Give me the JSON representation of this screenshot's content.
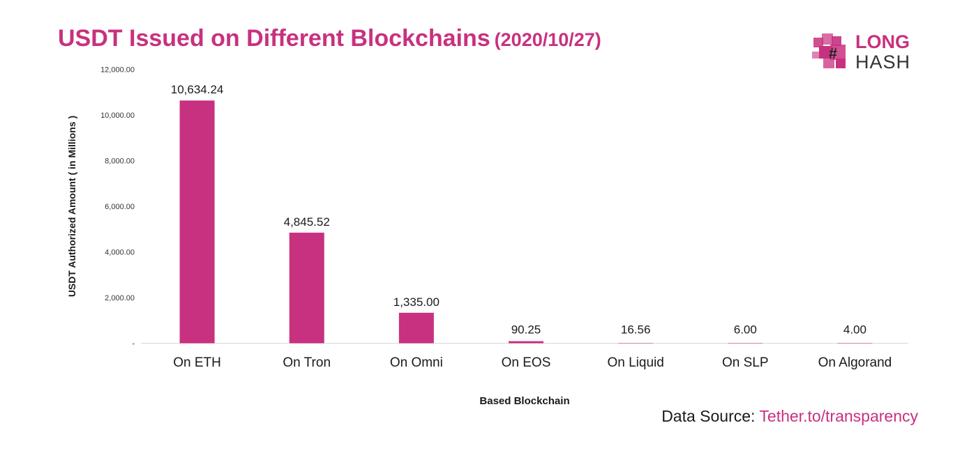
{
  "title": {
    "main": "USDT Issued on Different Blockchains",
    "date": "(2020/10/27)"
  },
  "logo": {
    "line1": "LONG",
    "line2": "HASH",
    "icon": "blocky-hash-logo-icon"
  },
  "source": {
    "prefix": "Data Source:",
    "link": "Tether.to/transparency"
  },
  "colors": {
    "accent": "#C8317F",
    "text": "#1a1a1a",
    "axis": "#d9d9d9"
  },
  "chart_data": {
    "type": "bar",
    "categories": [
      "On ETH",
      "On Tron",
      "On Omni",
      "On EOS",
      "On Liquid",
      "On SLP",
      "On Algorand"
    ],
    "values": [
      10634.24,
      4845.52,
      1335.0,
      90.25,
      16.56,
      6.0,
      4.0
    ],
    "data_labels": [
      "10,634.24",
      "4,845.52",
      "1,335.00",
      "90.25",
      "16.56",
      "6.00",
      "4.00"
    ],
    "yticks": [
      0,
      2000,
      4000,
      6000,
      8000,
      10000,
      12000
    ],
    "ytick_labels": [
      "-",
      "2,000.00",
      "4,000.00",
      "6,000.00",
      "8,000.00",
      "10,000.00",
      "12,000.00"
    ],
    "ylim": [
      0,
      12000
    ],
    "xlabel": "Based Blockchain",
    "ylabel": "USDT Authorized Amount ( in Millions )",
    "grid": false,
    "legend": "none"
  }
}
